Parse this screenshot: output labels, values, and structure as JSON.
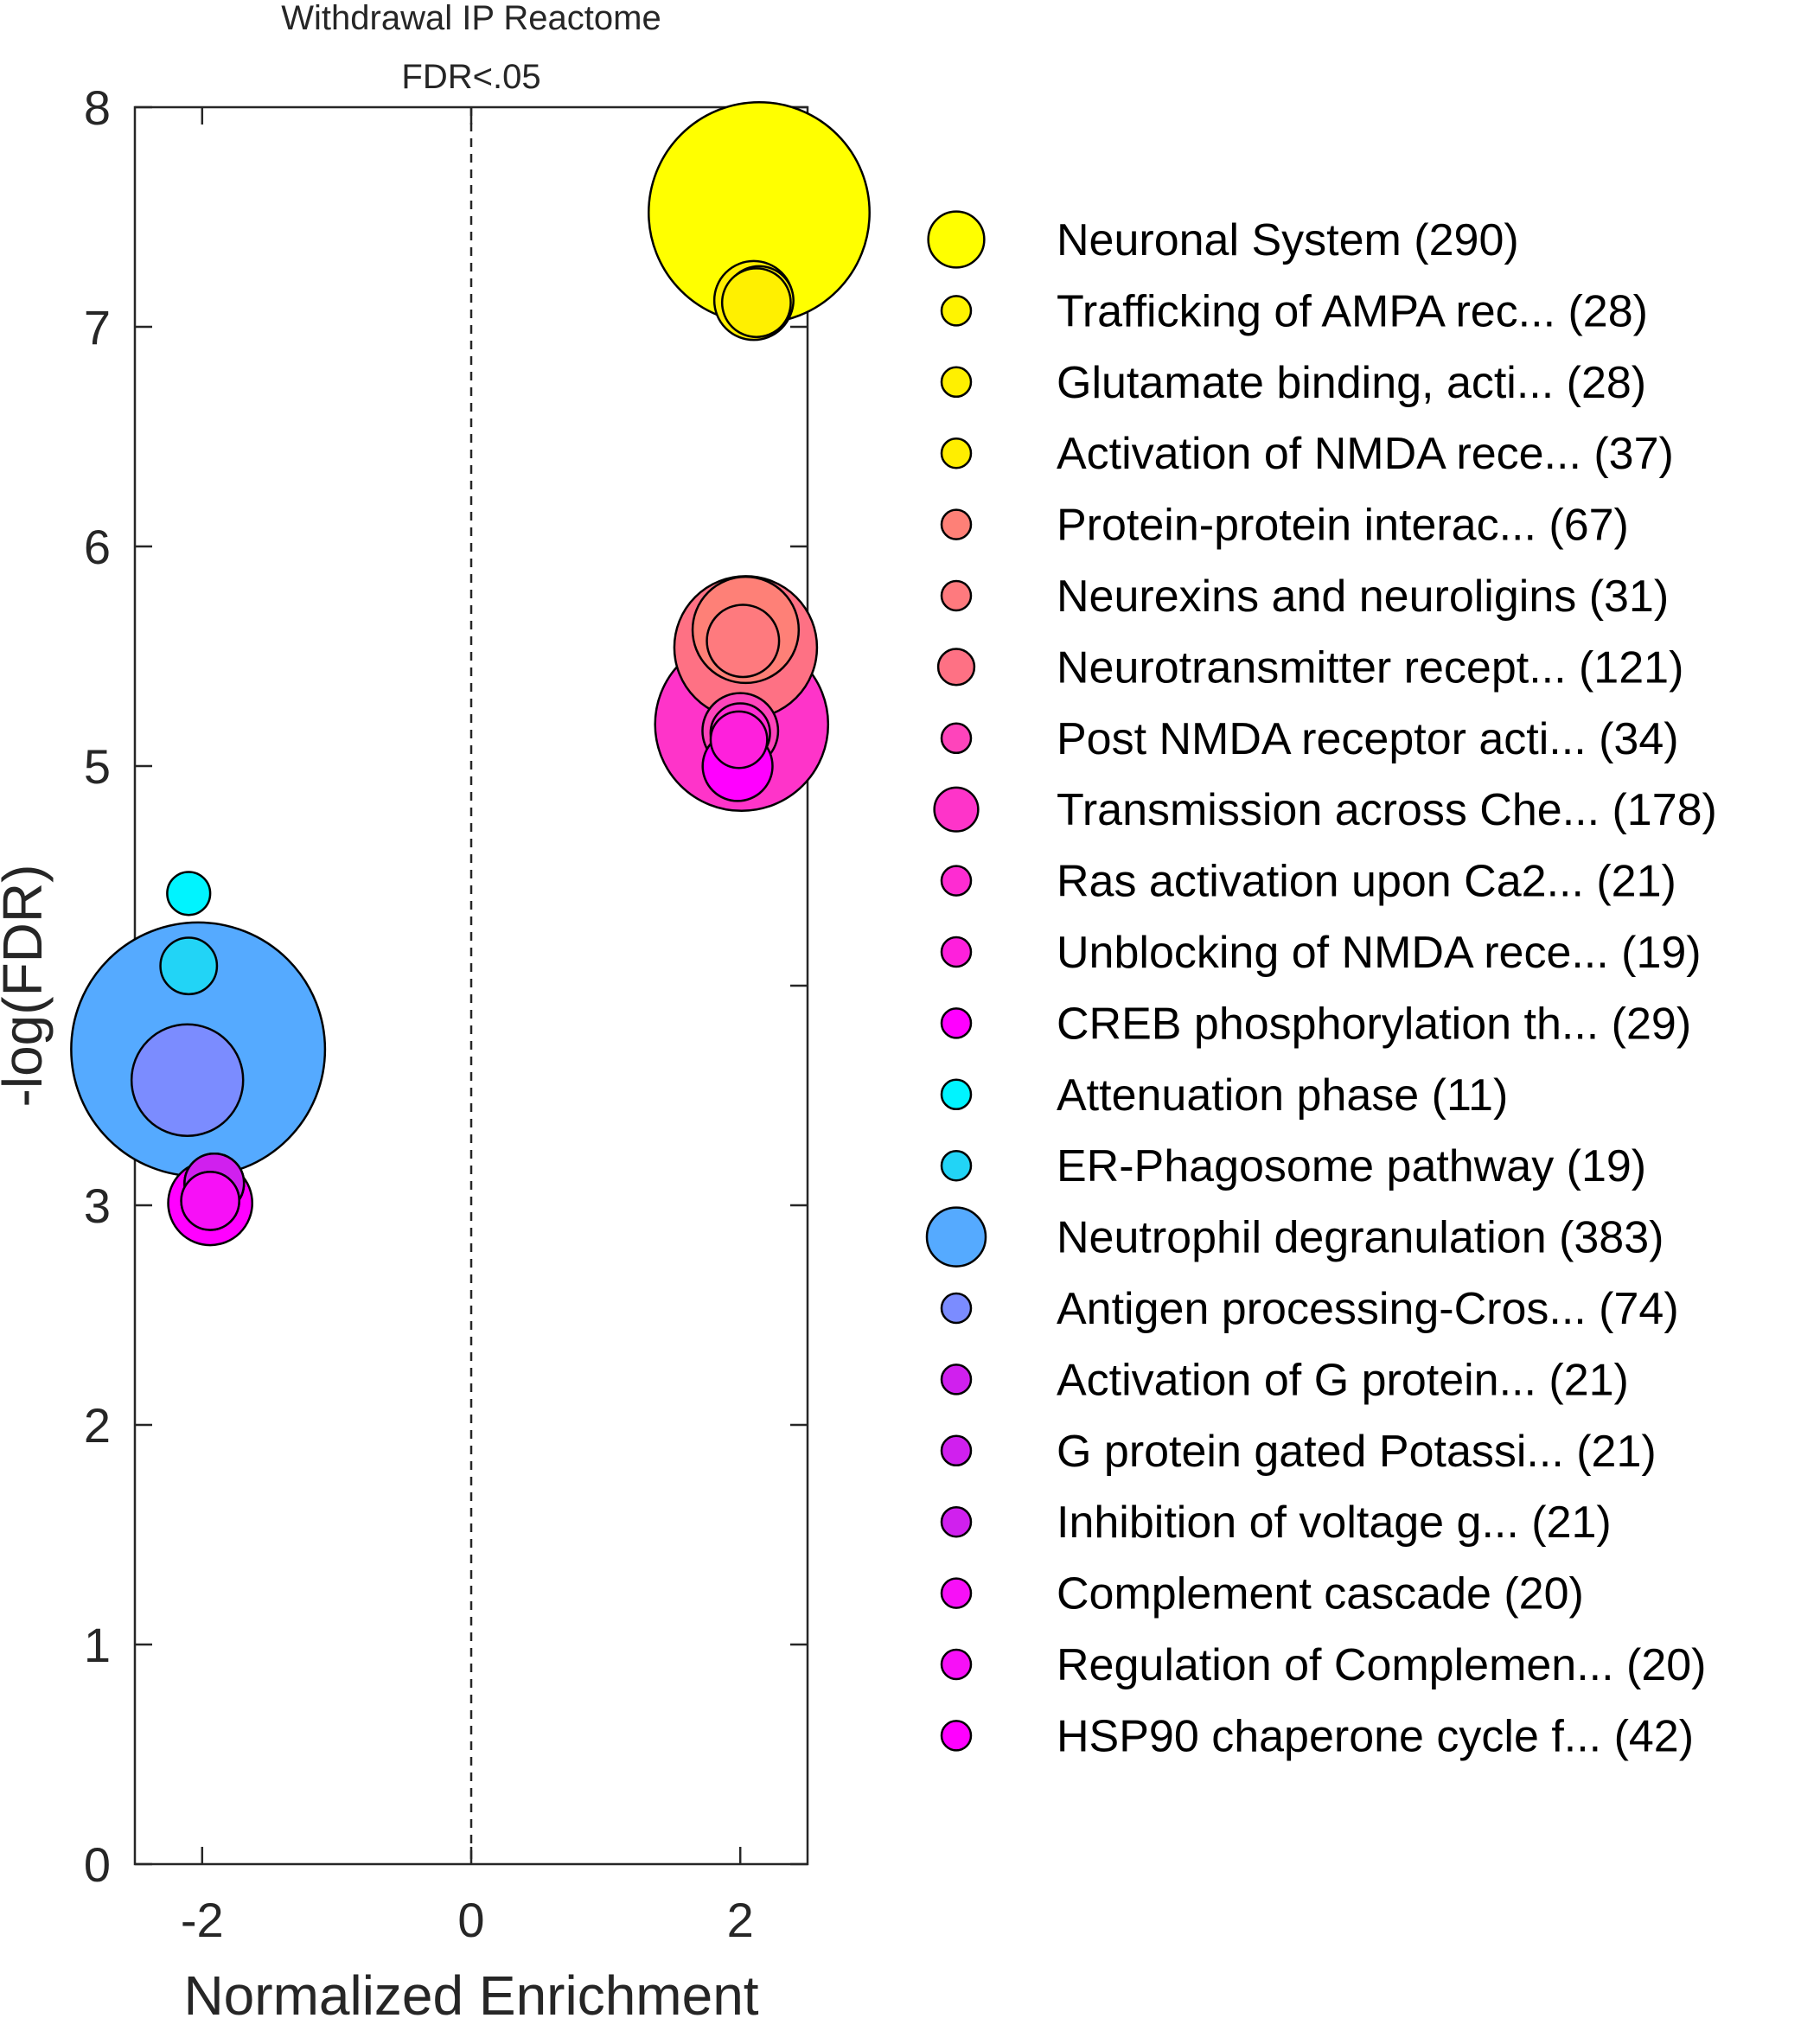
{
  "chart_data": {
    "type": "scatter",
    "title": [
      "Withdrawal IP Reactome",
      "FDR<.05"
    ],
    "xlabel": "Normalized Enrichment",
    "ylabel": "-log(FDR)",
    "xlim": [
      -2.5,
      2.5
    ],
    "ylim": [
      0,
      8
    ],
    "xticks": [
      -2,
      0,
      2
    ],
    "yticks": [
      0,
      1,
      2,
      3,
      4,
      5,
      6,
      7,
      8
    ],
    "reference_line": {
      "x": 0,
      "style": "dashed"
    },
    "grid": false,
    "legend_placement": "right",
    "series": [
      {
        "name": "Neuronal System (290)",
        "x": 2.14,
        "y": 7.52,
        "size": 290,
        "color": "#ffff00"
      },
      {
        "name": "Trafficking of AMPA rec... (28)",
        "x": 2.14,
        "y": 7.12,
        "size": 28,
        "color": "#fff400"
      },
      {
        "name": "Glutamate binding, acti... (28)",
        "x": 2.12,
        "y": 7.11,
        "size": 28,
        "color": "#fff000"
      },
      {
        "name": "Activation of NMDA rece... (37)",
        "x": 2.1,
        "y": 7.12,
        "size": 37,
        "color": "#ffee00"
      },
      {
        "name": "Protein-protein interac... (67)",
        "x": 2.04,
        "y": 5.62,
        "size": 67,
        "color": "#fe8077"
      },
      {
        "name": "Neurexins and neuroligins (31)",
        "x": 2.02,
        "y": 5.57,
        "size": 31,
        "color": "#fe7a7e"
      },
      {
        "name": "Neurotransmitter recept... (121)",
        "x": 2.04,
        "y": 5.54,
        "size": 121,
        "color": "#fe7184"
      },
      {
        "name": "Post NMDA receptor acti... (34)",
        "x": 2.0,
        "y": 5.16,
        "size": 34,
        "color": "#fe44bb"
      },
      {
        "name": "Transmission across Che... (178)",
        "x": 2.01,
        "y": 5.19,
        "size": 178,
        "color": "#fe34c9"
      },
      {
        "name": "Ras activation upon Ca2... (21)",
        "x": 2.0,
        "y": 5.15,
        "size": 21,
        "color": "#fe2cd2"
      },
      {
        "name": "Unblocking of NMDA rece... (19)",
        "x": 1.99,
        "y": 5.12,
        "size": 19,
        "color": "#fe20dc"
      },
      {
        "name": "CREB phosphorylation th... (29)",
        "x": 1.98,
        "y": 5.0,
        "size": 29,
        "color": "#ff00ff"
      },
      {
        "name": "Attenuation phase (11)",
        "x": -2.1,
        "y": 4.42,
        "size": 11,
        "color": "#00f4ff"
      },
      {
        "name": "ER-Phagosome pathway (19)",
        "x": -2.1,
        "y": 4.09,
        "size": 19,
        "color": "#22d4f6"
      },
      {
        "name": "Neutrophil degranulation (383)",
        "x": -2.03,
        "y": 3.71,
        "size": 383,
        "color": "#55aaff"
      },
      {
        "name": "Antigen processing-Cros... (74)",
        "x": -2.11,
        "y": 3.57,
        "size": 74,
        "color": "#7b8cff"
      },
      {
        "name": "Activation of G protein... (21)",
        "x": -1.91,
        "y": 3.1,
        "size": 21,
        "color": "#d020ee"
      },
      {
        "name": "G protein gated Potassi... (21)",
        "x": -1.91,
        "y": 3.1,
        "size": 21,
        "color": "#d020ee"
      },
      {
        "name": "Inhibition of voltage g... (21)",
        "x": -1.91,
        "y": 3.1,
        "size": 21,
        "color": "#d020ee"
      },
      {
        "name": "Complement cascade (20)",
        "x": -1.94,
        "y": 3.02,
        "size": 20,
        "color": "#f710f7"
      },
      {
        "name": "Regulation of Complemen... (20)",
        "x": -1.94,
        "y": 3.02,
        "size": 20,
        "color": "#f710f7"
      },
      {
        "name": "HSP90 chaperone cycle f... (42)",
        "x": -1.94,
        "y": 3.01,
        "size": 42,
        "color": "#ff00ff"
      }
    ]
  }
}
